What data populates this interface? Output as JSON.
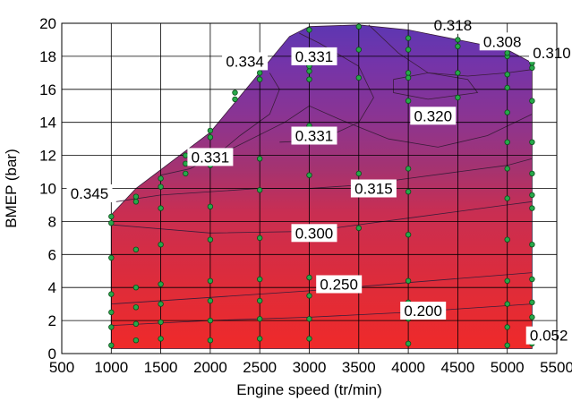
{
  "chart_data": {
    "type": "contour",
    "xlabel": "Engine speed (tr/min)",
    "ylabel": "BMEP (bar)",
    "xlim": [
      500,
      5500
    ],
    "ylim": [
      0,
      20
    ],
    "xticks": [
      "500",
      "1000",
      "1500",
      "2000",
      "2500",
      "3000",
      "3500",
      "4000",
      "4500",
      "5000",
      "5500"
    ],
    "yticks": [
      "0",
      "2",
      "4",
      "6",
      "8",
      "10",
      "12",
      "14",
      "16",
      "18",
      "20"
    ],
    "grid": true,
    "colors": {
      "low": "#ee2a2a",
      "mid": "#c82e54",
      "high": "#7a33a6",
      "top": "#5a37b0",
      "points": "#27a84a"
    },
    "boundary": [
      {
        "x": 1000,
        "y": 0.3
      },
      {
        "x": 1000,
        "y": 8.4
      },
      {
        "x": 1250,
        "y": 10.0
      },
      {
        "x": 2000,
        "y": 13.4
      },
      {
        "x": 2800,
        "y": 19.2
      },
      {
        "x": 3000,
        "y": 19.8
      },
      {
        "x": 3500,
        "y": 19.9
      },
      {
        "x": 4000,
        "y": 19.6
      },
      {
        "x": 4500,
        "y": 19.0
      },
      {
        "x": 5000,
        "y": 18.4
      },
      {
        "x": 5250,
        "y": 17.6
      },
      {
        "x": 5250,
        "y": 0.3
      }
    ],
    "contours": [
      {
        "level": "0.200",
        "label": "0.200",
        "label_x": 4150,
        "label_y": 2.6,
        "points": [
          [
            1000,
            1.7
          ],
          [
            2000,
            2.0
          ],
          [
            3000,
            2.2
          ],
          [
            4000,
            2.5
          ],
          [
            5250,
            3.0
          ]
        ]
      },
      {
        "level": "0.250",
        "label": "0.250",
        "label_x": 3300,
        "label_y": 4.2,
        "points": [
          [
            1000,
            3.0
          ],
          [
            2000,
            3.4
          ],
          [
            3000,
            3.8
          ],
          [
            4000,
            4.3
          ],
          [
            5250,
            4.9
          ]
        ]
      },
      {
        "level": "0.300",
        "label": "0.300",
        "label_x": 3050,
        "label_y": 7.3,
        "points": [
          [
            1000,
            7.8
          ],
          [
            2000,
            7.3
          ],
          [
            3000,
            7.4
          ],
          [
            4000,
            8.2
          ],
          [
            5000,
            9.0
          ],
          [
            5250,
            9.2
          ]
        ]
      },
      {
        "level": "0.315",
        "label": "0.315",
        "label_x": 3650,
        "label_y": 10.0,
        "points": [
          [
            1050,
            9.2
          ],
          [
            1500,
            9.6
          ],
          [
            2500,
            10.0
          ],
          [
            3000,
            10.0
          ],
          [
            3500,
            10.2
          ],
          [
            4000,
            10.6
          ],
          [
            4500,
            11.0
          ],
          [
            5000,
            11.4
          ],
          [
            5250,
            11.8
          ]
        ]
      },
      {
        "level": "0.320",
        "label": "0.320",
        "label_x": 4250,
        "label_y": 14.4,
        "points": [
          [
            1750,
            11.4
          ],
          [
            2250,
            12.5
          ],
          [
            2750,
            14.0
          ],
          [
            3000,
            15.0
          ],
          [
            3300,
            14.2
          ],
          [
            3800,
            13.0
          ],
          [
            4300,
            12.5
          ],
          [
            4800,
            13.2
          ],
          [
            5250,
            14.5
          ]
        ]
      },
      {
        "level": "0.331",
        "label": "0.331",
        "label_x": 2000,
        "label_y": 11.9,
        "points": [
          [
            1500,
            10.8
          ],
          [
            1800,
            11.2
          ],
          [
            2100,
            12.2
          ],
          [
            2300,
            13.2
          ],
          [
            2600,
            14.5
          ],
          [
            2700,
            16.0
          ],
          [
            2600,
            17.0
          ]
        ]
      },
      {
        "level": "0.331",
        "label": "0.331",
        "label_x": 3050,
        "label_y": 13.2,
        "points": [
          [
            2700,
            12.8
          ],
          [
            3100,
            12.9
          ],
          [
            3500,
            14.0
          ],
          [
            3650,
            15.5
          ],
          [
            3500,
            17.4
          ],
          [
            3100,
            18.8
          ],
          [
            2900,
            19.4
          ]
        ]
      },
      {
        "level": "0.318",
        "label": "0.318",
        "label_x": 4450,
        "label_y": 19.9,
        "points": [
          [
            3600,
            19.9
          ],
          [
            3900,
            18.2
          ],
          [
            4200,
            17.0
          ],
          [
            4600,
            16.8
          ],
          [
            5000,
            17.0
          ],
          [
            5250,
            17.2
          ]
        ]
      }
    ],
    "inner_loop": [
      [
        3850,
        16.6
      ],
      [
        4200,
        17.0
      ],
      [
        4600,
        16.6
      ],
      [
        4700,
        15.8
      ],
      [
        4200,
        15.4
      ],
      [
        3850,
        15.8
      ],
      [
        3850,
        16.6
      ]
    ],
    "labels": [
      {
        "text": "0.345",
        "x": 780,
        "y": 9.7
      },
      {
        "text": "0.334",
        "x": 2350,
        "y": 17.7
      },
      {
        "text": "0.331",
        "x": 3050,
        "y": 18.0
      },
      {
        "text": "0.331",
        "x": 2000,
        "y": 11.9
      },
      {
        "text": "0.331",
        "x": 3050,
        "y": 13.2
      },
      {
        "text": "0.320",
        "x": 4250,
        "y": 14.4
      },
      {
        "text": "0.315",
        "x": 3650,
        "y": 10.0
      },
      {
        "text": "0.300",
        "x": 3050,
        "y": 7.3
      },
      {
        "text": "0.250",
        "x": 3300,
        "y": 4.2
      },
      {
        "text": "0.200",
        "x": 4150,
        "y": 2.6
      },
      {
        "text": "0.318",
        "x": 4450,
        "y": 19.9
      },
      {
        "text": "0.308",
        "x": 4950,
        "y": 18.9
      },
      {
        "text": "0.310",
        "x": 5450,
        "y": 18.2
      },
      {
        "text": "0.052",
        "x": 5420,
        "y": 1.1
      }
    ],
    "points": [
      [
        1000,
        0.5
      ],
      [
        1000,
        1.6
      ],
      [
        1000,
        2.5
      ],
      [
        1000,
        3.6
      ],
      [
        1000,
        5.8
      ],
      [
        1000,
        7.9
      ],
      [
        1000,
        8.3
      ],
      [
        1250,
        0.8
      ],
      [
        1250,
        1.8
      ],
      [
        1250,
        2.8
      ],
      [
        1250,
        4.0
      ],
      [
        1250,
        6.3
      ],
      [
        1250,
        9.2
      ],
      [
        1250,
        9.5
      ],
      [
        1500,
        0.9
      ],
      [
        1500,
        1.9
      ],
      [
        1500,
        3.0
      ],
      [
        1500,
        4.2
      ],
      [
        1500,
        6.6
      ],
      [
        1500,
        8.8
      ],
      [
        1500,
        10.1
      ],
      [
        1500,
        10.6
      ],
      [
        1750,
        11.5
      ],
      [
        1750,
        12.0
      ],
      [
        1750,
        10.9
      ],
      [
        2000,
        0.8
      ],
      [
        2000,
        2.0
      ],
      [
        2000,
        3.2
      ],
      [
        2000,
        4.4
      ],
      [
        2000,
        6.9
      ],
      [
        2000,
        8.9
      ],
      [
        2000,
        11.4
      ],
      [
        2000,
        13.1
      ],
      [
        2000,
        13.5
      ],
      [
        2250,
        15.4
      ],
      [
        2250,
        15.8
      ],
      [
        2500,
        0.9
      ],
      [
        2500,
        2.1
      ],
      [
        2500,
        3.2
      ],
      [
        2500,
        4.5
      ],
      [
        2500,
        7.0
      ],
      [
        2500,
        9.9
      ],
      [
        2500,
        11.8
      ],
      [
        2500,
        16.6
      ],
      [
        2500,
        17.0
      ],
      [
        2500,
        17.6
      ],
      [
        3000,
        0.9
      ],
      [
        3000,
        2.1
      ],
      [
        3000,
        3.5
      ],
      [
        3000,
        4.6
      ],
      [
        3000,
        7.3
      ],
      [
        3000,
        10.8
      ],
      [
        3000,
        13.8
      ],
      [
        3000,
        16.6
      ],
      [
        3000,
        17.1
      ],
      [
        3000,
        17.4
      ],
      [
        3000,
        19.6
      ],
      [
        3500,
        7.6
      ],
      [
        3500,
        10.9
      ],
      [
        3500,
        16.7
      ],
      [
        3500,
        18.4
      ],
      [
        3500,
        19.8
      ],
      [
        4000,
        0.6
      ],
      [
        4000,
        2.1
      ],
      [
        4000,
        3.1
      ],
      [
        4000,
        4.4
      ],
      [
        4000,
        7.2
      ],
      [
        4000,
        9.8
      ],
      [
        4000,
        11.2
      ],
      [
        4000,
        15.3
      ],
      [
        4000,
        16.7
      ],
      [
        4000,
        17.0
      ],
      [
        4000,
        18.4
      ],
      [
        4000,
        19.1
      ],
      [
        4500,
        15.5
      ],
      [
        4500,
        17.0
      ],
      [
        4500,
        18.6
      ],
      [
        4500,
        19.0
      ],
      [
        5000,
        0.5
      ],
      [
        5000,
        1.6
      ],
      [
        5000,
        3.0
      ],
      [
        5000,
        4.4
      ],
      [
        5000,
        6.9
      ],
      [
        5000,
        9.4
      ],
      [
        5000,
        11.2
      ],
      [
        5000,
        12.8
      ],
      [
        5000,
        14.6
      ],
      [
        5000,
        16.1
      ],
      [
        5000,
        16.9
      ],
      [
        5000,
        18.0
      ],
      [
        5000,
        18.2
      ],
      [
        5250,
        0.6
      ],
      [
        5250,
        2.2
      ],
      [
        5250,
        3.1
      ],
      [
        5250,
        4.5
      ],
      [
        5250,
        6.6
      ],
      [
        5250,
        8.8
      ],
      [
        5250,
        9.6
      ],
      [
        5250,
        10.9
      ],
      [
        5250,
        12.8
      ],
      [
        5250,
        15.3
      ],
      [
        5250,
        17.3
      ],
      [
        5250,
        17.6
      ]
    ]
  }
}
